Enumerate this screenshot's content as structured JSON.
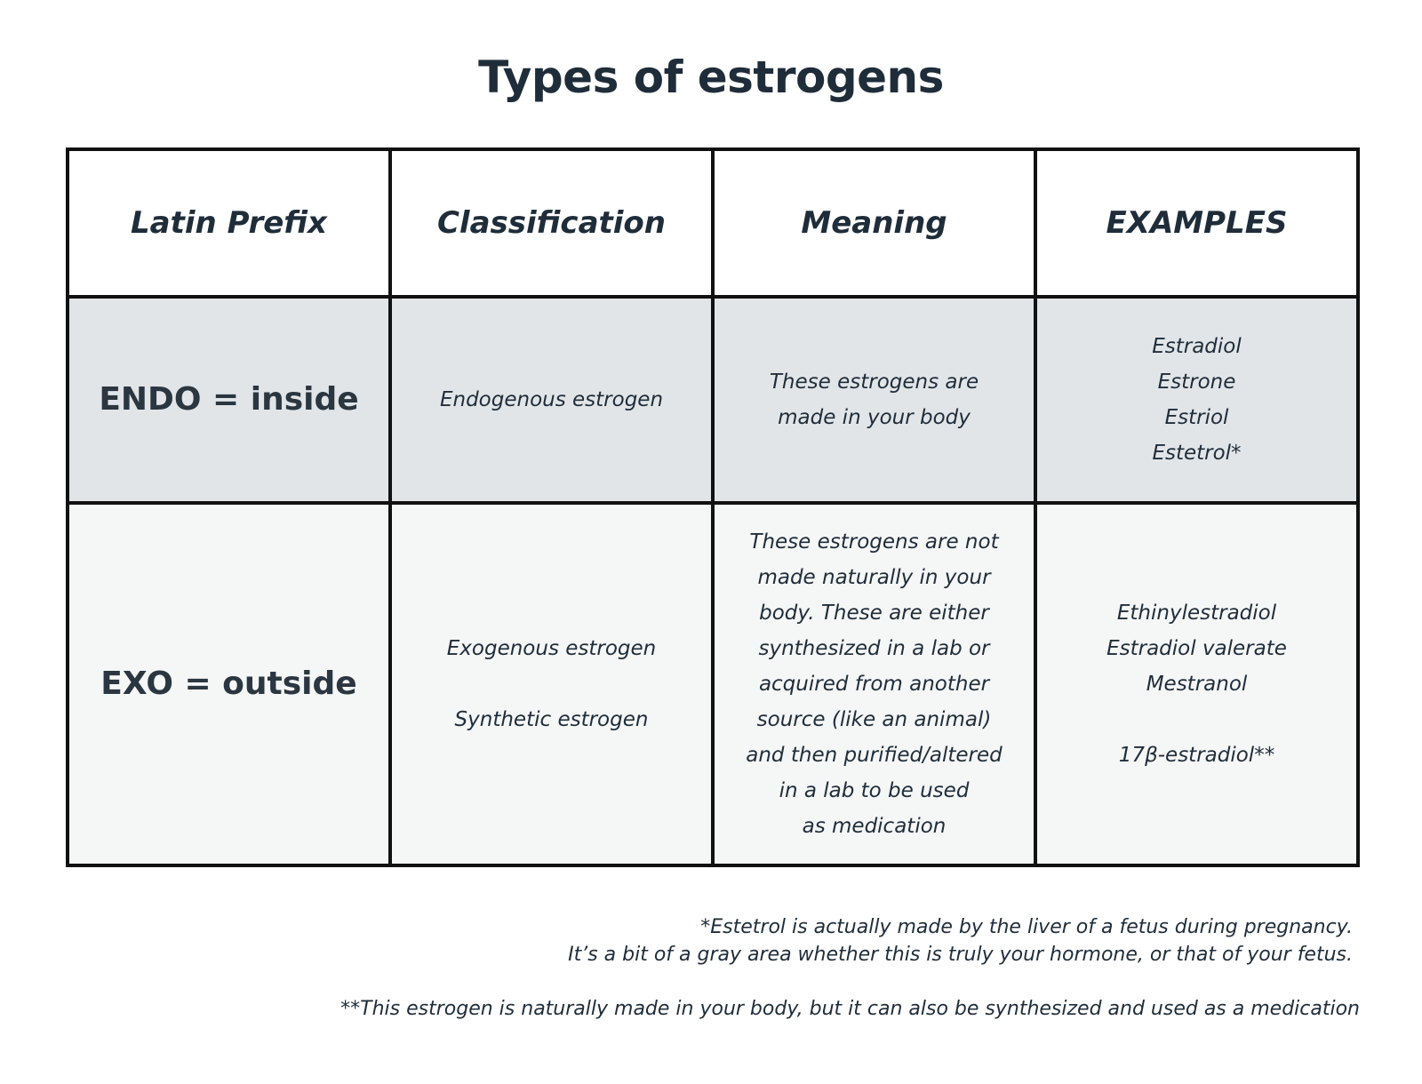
{
  "title": "Types of estrogens",
  "table": {
    "headers": [
      "Latin Prefix",
      "Classification",
      "Meaning",
      "EXAMPLES"
    ],
    "rows": [
      [
        [
          [
            "ENDO = inside"
          ]
        ],
        [
          [
            "Endogenous estrogen"
          ]
        ],
        [
          [
            "These estrogens are",
            "made in your body"
          ]
        ],
        [
          [
            "Estradiol",
            "Estrone",
            "Estriol",
            "Estetrol*"
          ]
        ]
      ],
      [
        [
          [
            "EXO = outside"
          ]
        ],
        [
          [
            "Exogenous estrogen"
          ],
          [
            "Synthetic estrogen"
          ]
        ],
        [
          [
            "These estrogens are not",
            "made naturally in your",
            "body. These are either",
            "synthesized in a lab or",
            "acquired from another",
            "source (like an animal)",
            "and then purified/altered",
            "in a lab to be used",
            "as medication"
          ]
        ],
        [
          [
            "Ethinylestradiol",
            "Estradiol valerate",
            "Mestranol"
          ],
          [
            "17β-estradiol**"
          ]
        ]
      ]
    ]
  },
  "footnotes": [
    [
      "*Estetrol is actually made by the liver of a fetus during pregnancy.",
      "It’s a bit of a gray area whether this is truly your hormone, or that of your fetus."
    ],
    [
      "**This estrogen is naturally made in your body, but it can also be synthesized and used as a medication"
    ]
  ]
}
